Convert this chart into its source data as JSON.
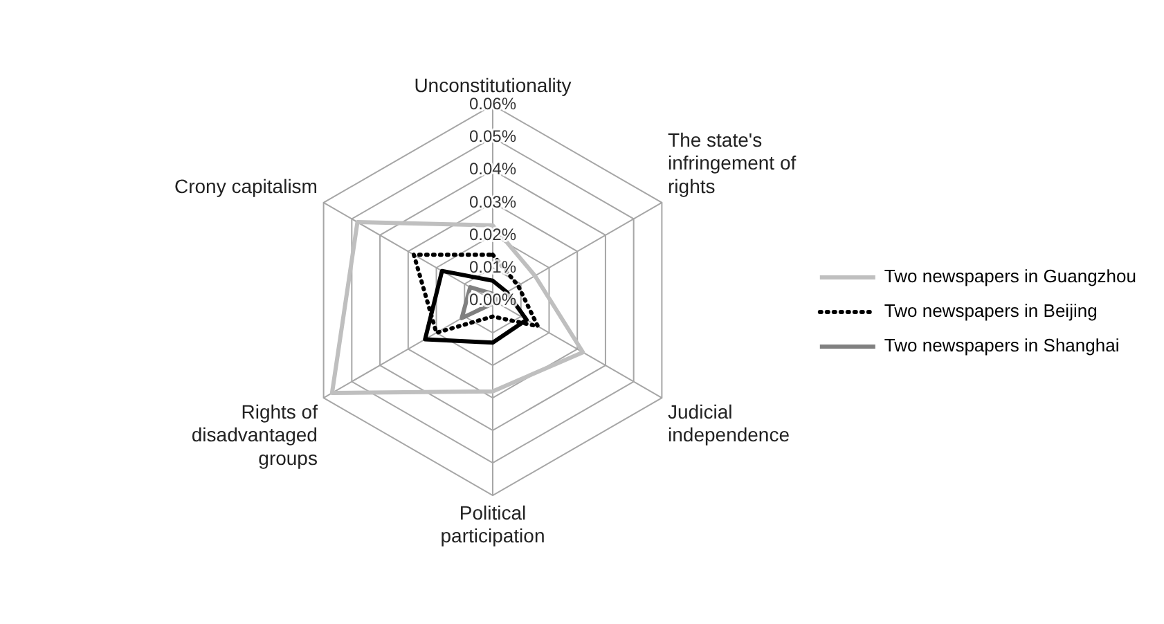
{
  "chart_data": {
    "type": "radar",
    "categories": [
      "Unconstitutionality",
      "The state's infringement of rights",
      "Judicial independence",
      "Political participation",
      "Rights of disadvantaged groups",
      "Crony capitalism"
    ],
    "series": [
      {
        "name": "Two newspapers in Guangzhou",
        "color": "#bfbfbf",
        "values": [
          0.023,
          0.015,
          0.032,
          0.028,
          0.057,
          0.048
        ]
      },
      {
        "name": "Two newspapers in Beijing",
        "color": "#000000",
        "line_style": "dotted",
        "values": [
          0.014,
          0.009,
          0.016,
          0.005,
          0.02,
          0.028
        ]
      },
      {
        "name": "Two newspapers in Shanghai",
        "color": "#808080",
        "values": [
          0.002,
          0.001,
          0.001,
          0.001,
          0.011,
          0.008
        ]
      },
      {
        "color": "#000000",
        "values": [
          0.006,
          0.005,
          0.012,
          0.013,
          0.024,
          0.018
        ]
      }
    ],
    "ylim": [
      0,
      0.06
    ],
    "yticks": [
      {
        "value": 0,
        "label": "0.00%"
      },
      {
        "value": 0.01,
        "label": "0.01%"
      },
      {
        "value": 0.02,
        "label": "0.02%"
      },
      {
        "value": 0.03,
        "label": "0.03%"
      },
      {
        "value": 0.04,
        "label": "0.04%"
      },
      {
        "value": 0.05,
        "label": "0.05%"
      },
      {
        "value": 0.06,
        "label": "0.06%"
      }
    ],
    "marker": "none",
    "line_style": "solid",
    "legend": "right",
    "grid": true
  }
}
